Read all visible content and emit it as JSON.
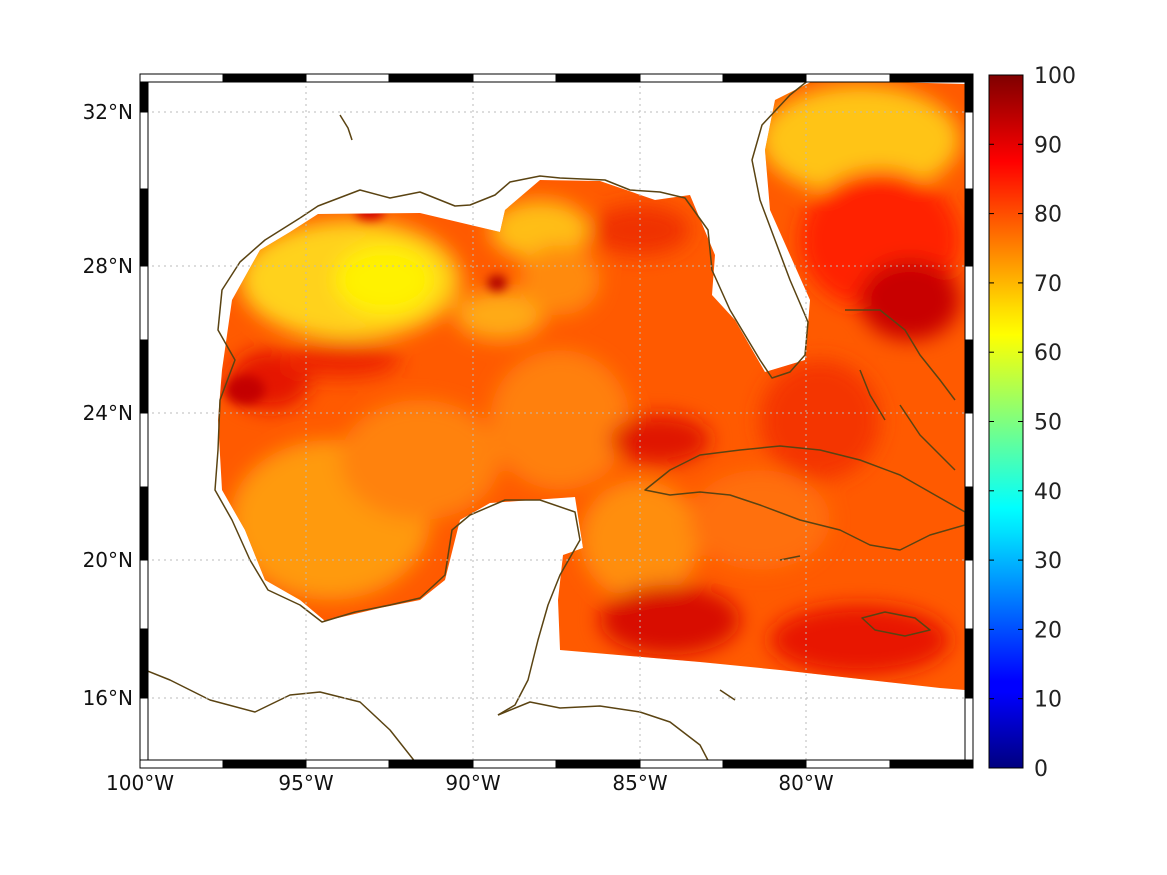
{
  "map": {
    "region": "Gulf of Mexico and western Caribbean",
    "lon_range": [
      -100,
      -75
    ],
    "lat_range": [
      14.2,
      33
    ],
    "colormap": "jet",
    "value_range": [
      0,
      100
    ],
    "coastline_color": "#5a4312",
    "gridlines": true,
    "frame": "alternating black/white border"
  },
  "chart_data": {
    "type": "heatmap",
    "x_ticks": [
      "100°W",
      "95°W",
      "90°W",
      "85°W",
      "80°W"
    ],
    "x_tick_values": [
      -100,
      -95,
      -90,
      -85,
      -80
    ],
    "y_ticks": [
      "32°N",
      "28°N",
      "24°N",
      "20°N",
      "16°N"
    ],
    "y_tick_values": [
      32,
      28,
      24,
      20,
      16
    ],
    "colorbar": {
      "min": 0,
      "max": 100,
      "ticks": [
        "100",
        "90",
        "80",
        "70",
        "60",
        "50",
        "40",
        "30",
        "20",
        "10",
        "0"
      ],
      "tick_values": [
        100,
        90,
        80,
        70,
        60,
        50,
        40,
        30,
        20,
        10,
        0
      ]
    },
    "field_value_range_estimate": [
      65,
      97
    ]
  }
}
